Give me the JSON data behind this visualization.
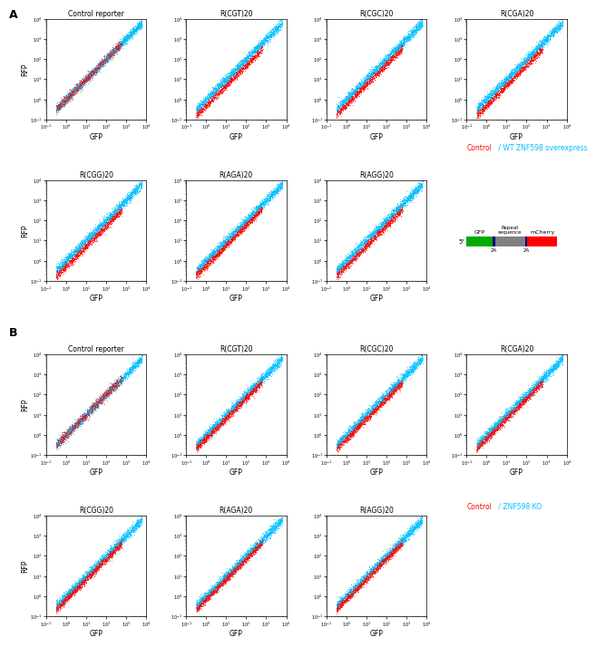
{
  "panel_A_title": "A",
  "panel_B_title": "B",
  "row1_titles": [
    "Control reporter",
    "R(CGT)20",
    "R(CGC)20",
    "R(CGA)20"
  ],
  "row2_titles": [
    "R(CGG)20",
    "R(AGA)20",
    "R(AGG)20"
  ],
  "legend_A_red": "Control",
  "legend_A_cyan": " / WT ZNF598 overexpress",
  "legend_B_red": "Control",
  "legend_B_cyan": " / ZNF598 KO",
  "diagram_gfp": "GFP",
  "diagram_repeat": "Repeat\nsequence",
  "diagram_mcherry": "mCherry",
  "diagram_2A_left": "2A",
  "diagram_2A_right": "2A",
  "diagram_5prime": "5'",
  "xlabel": "GFP",
  "ylabel": "RFP",
  "cyan_color": "#00BFFF",
  "red_color": "#FF0000",
  "green_color": "#00AA00",
  "gray_color": "#808080",
  "dark_blue_color": "#000080",
  "seed": 42
}
